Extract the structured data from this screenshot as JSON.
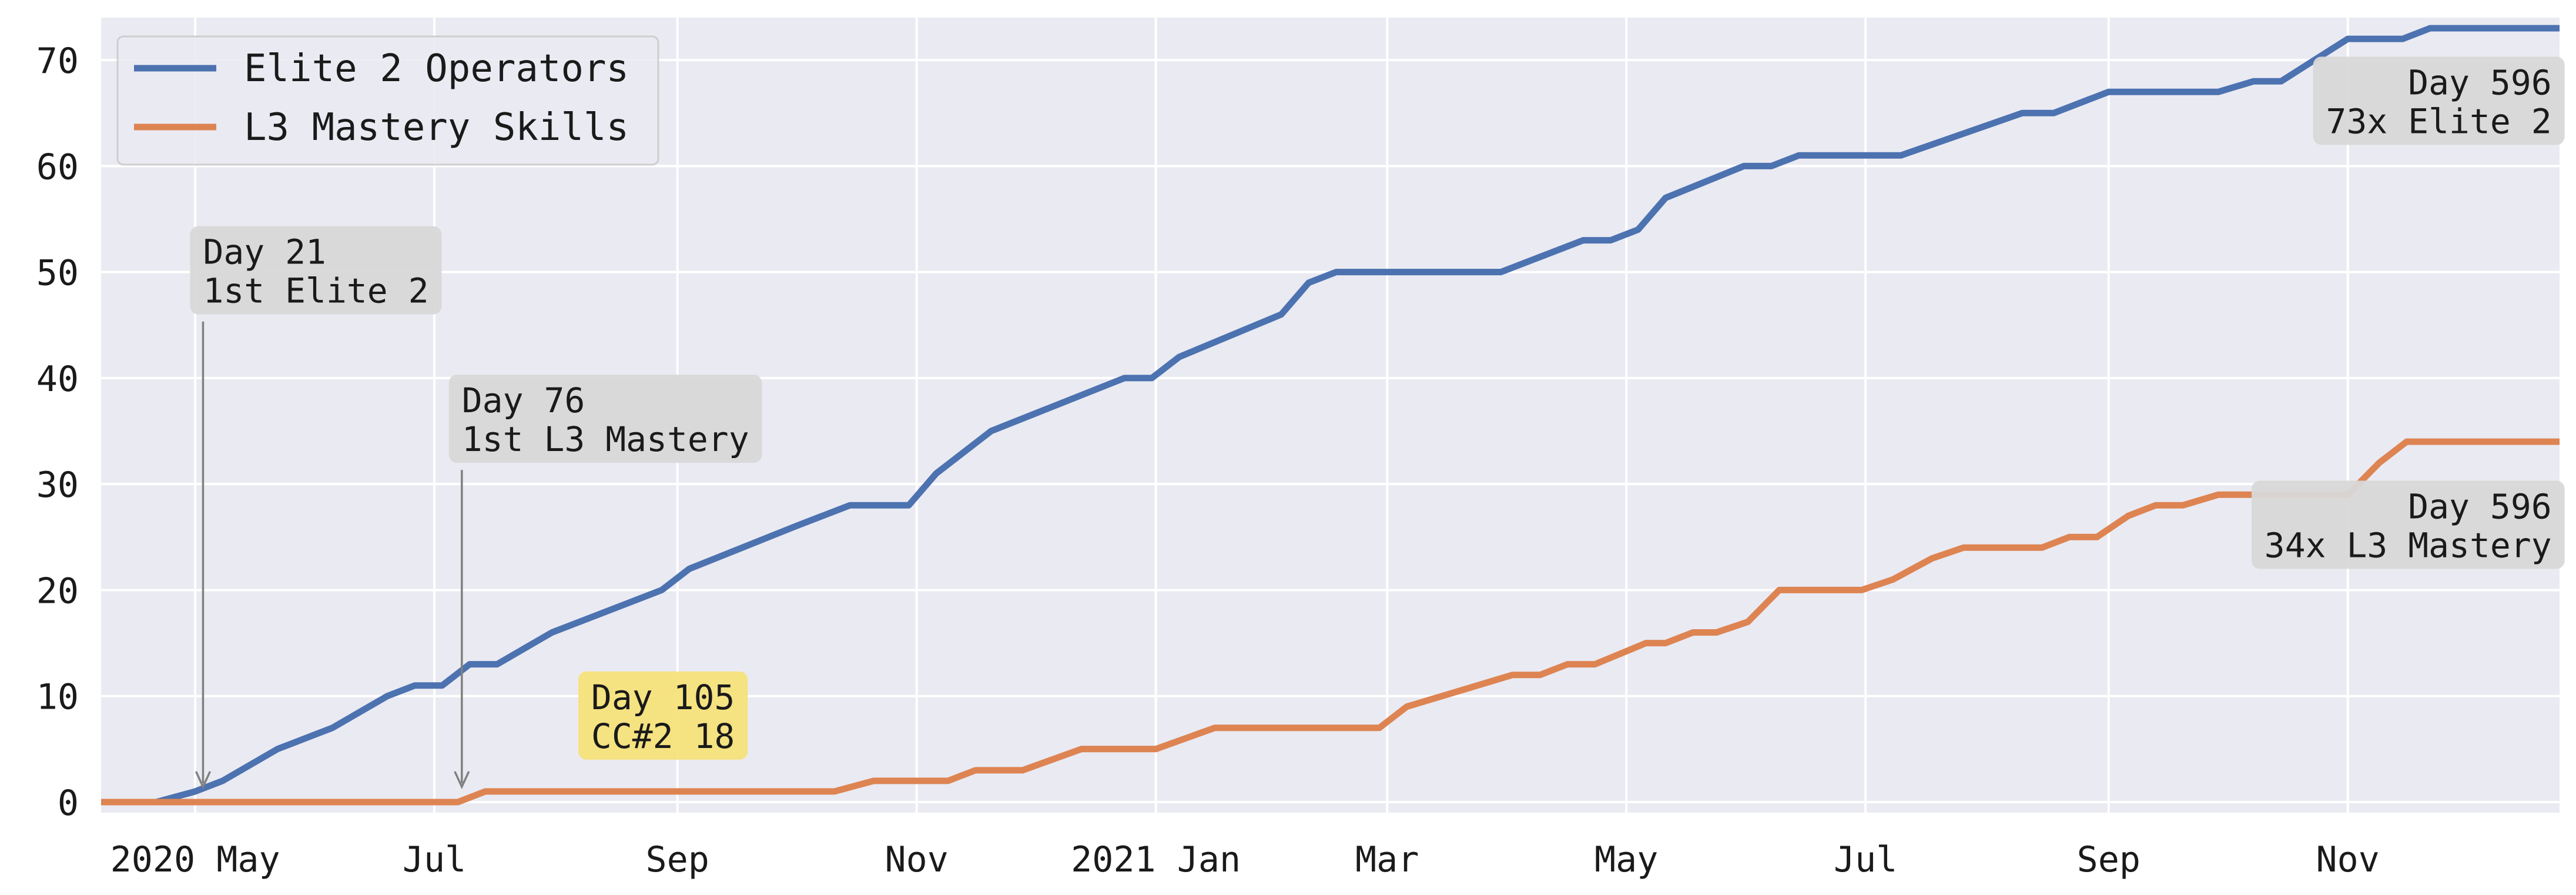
{
  "chart_data": {
    "type": "line",
    "x_axis": {
      "type": "date",
      "range": [
        "2020-04-07",
        "2021-12-25"
      ],
      "ticks": [
        {
          "date": "2020-05-01",
          "label": "2020 May"
        },
        {
          "date": "2020-07-01",
          "label": "Jul"
        },
        {
          "date": "2020-09-01",
          "label": "Sep"
        },
        {
          "date": "2020-11-01",
          "label": "Nov"
        },
        {
          "date": "2021-01-01",
          "label": "2021 Jan"
        },
        {
          "date": "2021-03-01",
          "label": "Mar"
        },
        {
          "date": "2021-05-01",
          "label": "May"
        },
        {
          "date": "2021-07-01",
          "label": "Jul"
        },
        {
          "date": "2021-09-01",
          "label": "Sep"
        },
        {
          "date": "2021-11-01",
          "label": "Nov"
        }
      ]
    },
    "y_axis": {
      "range": [
        -1,
        74
      ],
      "ticks": [
        0,
        10,
        20,
        30,
        40,
        50,
        60,
        70
      ]
    },
    "grid": true,
    "legend": {
      "placement": "top-left",
      "entries": [
        {
          "label": "Elite 2 Operators",
          "color": "#4c72b0"
        },
        {
          "label": "L3 Mastery Skills",
          "color": "#dd8452"
        }
      ]
    },
    "series": [
      {
        "name": "Elite 2 Operators",
        "color": "#4c72b0",
        "points": [
          [
            "2020-04-07",
            0
          ],
          [
            "2020-04-21",
            0
          ],
          [
            "2020-05-01",
            1
          ],
          [
            "2020-05-08",
            2
          ],
          [
            "2020-05-22",
            5
          ],
          [
            "2020-05-29",
            6
          ],
          [
            "2020-06-05",
            7
          ],
          [
            "2020-06-19",
            10
          ],
          [
            "2020-06-26",
            11
          ],
          [
            "2020-07-03",
            11
          ],
          [
            "2020-07-10",
            13
          ],
          [
            "2020-07-17",
            13
          ],
          [
            "2020-07-31",
            16
          ],
          [
            "2020-08-07",
            17
          ],
          [
            "2020-08-28",
            20
          ],
          [
            "2020-09-04",
            22
          ],
          [
            "2020-10-01",
            26
          ],
          [
            "2020-10-15",
            28
          ],
          [
            "2020-10-30",
            28
          ],
          [
            "2020-11-06",
            31
          ],
          [
            "2020-11-20",
            35
          ],
          [
            "2020-12-24",
            40
          ],
          [
            "2020-12-31",
            40
          ],
          [
            "2021-01-07",
            42
          ],
          [
            "2021-02-02",
            46
          ],
          [
            "2021-02-09",
            49
          ],
          [
            "2021-02-16",
            50
          ],
          [
            "2021-03-30",
            50
          ],
          [
            "2021-04-20",
            53
          ],
          [
            "2021-04-27",
            53
          ],
          [
            "2021-05-04",
            54
          ],
          [
            "2021-05-11",
            57
          ],
          [
            "2021-05-31",
            60
          ],
          [
            "2021-06-07",
            60
          ],
          [
            "2021-06-14",
            61
          ],
          [
            "2021-07-10",
            61
          ],
          [
            "2021-08-10",
            65
          ],
          [
            "2021-08-18",
            65
          ],
          [
            "2021-09-01",
            67
          ],
          [
            "2021-09-29",
            67
          ],
          [
            "2021-10-08",
            68
          ],
          [
            "2021-10-15",
            68
          ],
          [
            "2021-11-01",
            72
          ],
          [
            "2021-11-15",
            72
          ],
          [
            "2021-11-22",
            73
          ],
          [
            "2021-12-25",
            73
          ]
        ]
      },
      {
        "name": "L3 Mastery Skills",
        "color": "#dd8452",
        "points": [
          [
            "2020-04-07",
            0
          ],
          [
            "2020-07-07",
            0
          ],
          [
            "2020-07-14",
            1
          ],
          [
            "2020-10-11",
            1
          ],
          [
            "2020-10-21",
            2
          ],
          [
            "2020-11-09",
            2
          ],
          [
            "2020-11-16",
            3
          ],
          [
            "2020-11-28",
            3
          ],
          [
            "2020-12-13",
            5
          ],
          [
            "2021-01-01",
            5
          ],
          [
            "2021-01-16",
            7
          ],
          [
            "2021-02-27",
            7
          ],
          [
            "2021-03-06",
            9
          ],
          [
            "2021-04-02",
            12
          ],
          [
            "2021-04-09",
            12
          ],
          [
            "2021-04-16",
            13
          ],
          [
            "2021-04-23",
            13
          ],
          [
            "2021-05-06",
            15
          ],
          [
            "2021-05-11",
            15
          ],
          [
            "2021-05-18",
            16
          ],
          [
            "2021-05-24",
            16
          ],
          [
            "2021-06-01",
            17
          ],
          [
            "2021-06-09",
            20
          ],
          [
            "2021-06-30",
            20
          ],
          [
            "2021-07-08",
            21
          ],
          [
            "2021-07-18",
            23
          ],
          [
            "2021-07-26",
            24
          ],
          [
            "2021-08-15",
            24
          ],
          [
            "2021-08-22",
            25
          ],
          [
            "2021-08-29",
            25
          ],
          [
            "2021-09-06",
            27
          ],
          [
            "2021-09-13",
            28
          ],
          [
            "2021-09-20",
            28
          ],
          [
            "2021-09-29",
            29
          ],
          [
            "2021-11-01",
            29
          ],
          [
            "2021-11-09",
            32
          ],
          [
            "2021-11-16",
            34
          ],
          [
            "2021-12-25",
            34
          ]
        ]
      }
    ],
    "annotations": [
      {
        "lines": [
          "Day 21",
          "1st Elite 2"
        ],
        "point": [
          "2020-05-03",
          1
        ],
        "text_at": [
          "2020-05-03",
          46
        ],
        "align": "left",
        "box_color": "#d8d8d8",
        "arrow": true
      },
      {
        "lines": [
          "Day 76",
          "1st L3 Mastery"
        ],
        "point": [
          "2020-07-08",
          1
        ],
        "text_at": [
          "2020-07-08",
          32
        ],
        "align": "left",
        "box_color": "#d8d8d8",
        "arrow": true
      },
      {
        "lines": [
          "Day 105",
          "CC#2 18"
        ],
        "point": [
          "2020-08-10",
          4
        ],
        "text_at": [
          "2020-08-10",
          4
        ],
        "align": "left",
        "box_color": "#f5e17a",
        "arrow": false
      },
      {
        "lines": [
          "Day 596",
          "73x Elite 2"
        ],
        "point": [
          "2021-12-23",
          62
        ],
        "text_at": [
          "2021-12-23",
          62
        ],
        "align": "right",
        "box_color": "#d8d8d8",
        "arrow": false
      },
      {
        "lines": [
          "Day 596",
          "34x L3 Mastery"
        ],
        "point": [
          "2021-12-23",
          22
        ],
        "text_at": [
          "2021-12-23",
          22
        ],
        "align": "right",
        "box_color": "#d8d8d8",
        "arrow": false
      }
    ]
  }
}
